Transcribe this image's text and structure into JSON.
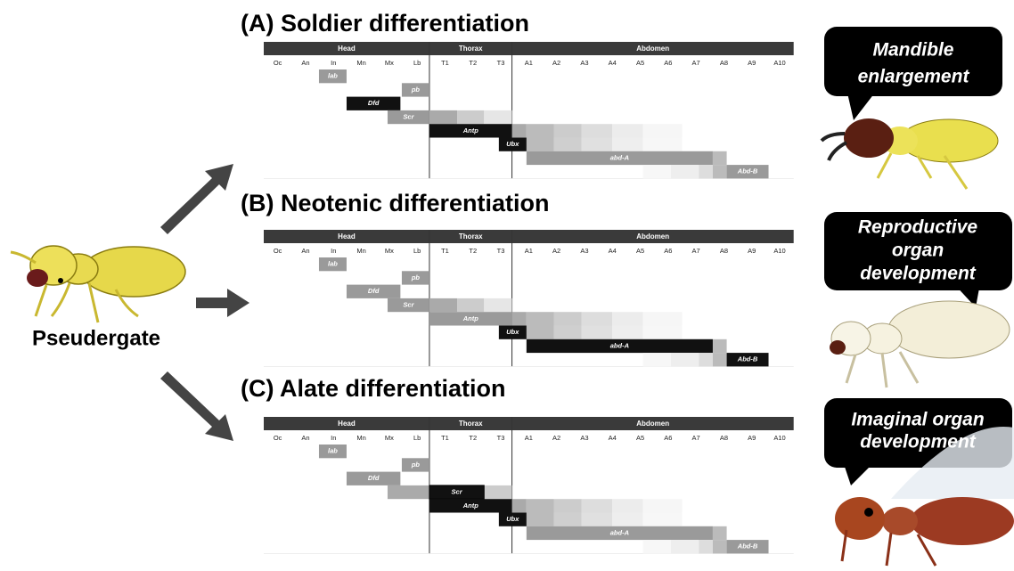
{
  "source": {
    "label": "Pseudergate"
  },
  "panels": [
    {
      "title": "(A) Soldier differentiation",
      "regions": [
        "Head",
        "Thorax",
        "Abdomen"
      ],
      "segments": [
        "Oc",
        "An",
        "In",
        "Mn",
        "Mx",
        "Lb",
        "T1",
        "T2",
        "T3",
        "A1",
        "A2",
        "A3",
        "A4",
        "A5",
        "A6",
        "A7",
        "A8",
        "A9",
        "A10"
      ],
      "genes": [
        "lab",
        "pb",
        "Dfd",
        "Scr",
        "Antp",
        "Ubx",
        "abd-A",
        "Abd-B"
      ],
      "callout": [
        "Mandible",
        "enlargement"
      ]
    },
    {
      "title": "(B) Neotenic differentiation",
      "regions": [
        "Head",
        "Thorax",
        "Abdomen"
      ],
      "segments": [
        "Oc",
        "An",
        "In",
        "Mn",
        "Mx",
        "Lb",
        "T1",
        "T2",
        "T3",
        "A1",
        "A2",
        "A3",
        "A4",
        "A5",
        "A6",
        "A7",
        "A8",
        "A9",
        "A10"
      ],
      "genes": [
        "lab",
        "pb",
        "Dfd",
        "Scr",
        "Antp",
        "Ubx",
        "abd-A",
        "Abd-B"
      ],
      "callout": [
        "Reproductive",
        "organ",
        "development"
      ]
    },
    {
      "title": "(C) Alate differentiation",
      "regions": [
        "Head",
        "Thorax",
        "Abdomen"
      ],
      "segments": [
        "Oc",
        "An",
        "In",
        "Mn",
        "Mx",
        "Lb",
        "T1",
        "T2",
        "T3",
        "A1",
        "A2",
        "A3",
        "A4",
        "A5",
        "A6",
        "A7",
        "A8",
        "A9",
        "A10"
      ],
      "genes": [
        "lab",
        "pb",
        "Dfd",
        "Scr",
        "Antp",
        "Ubx",
        "abd-A",
        "Abd-B"
      ],
      "callout": [
        "Imaginal organ",
        "development"
      ]
    }
  ]
}
